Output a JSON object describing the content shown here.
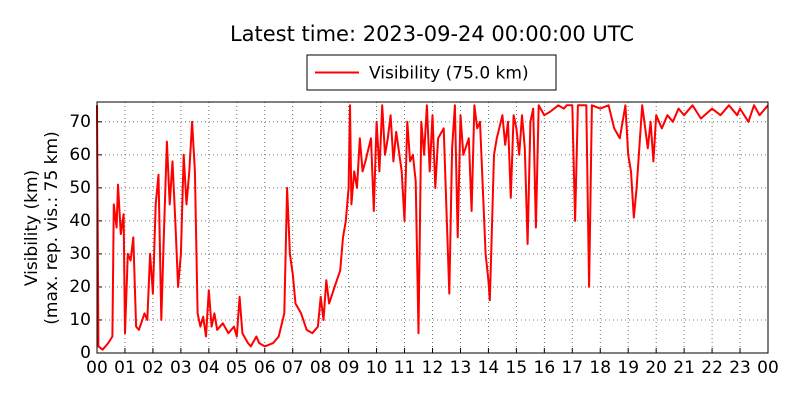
{
  "chart_data": {
    "type": "line",
    "title": "Latest time: 2023-09-24 00:00:00 UTC",
    "ylabel": [
      "Visibility (km)",
      "(max. rep. vis.: 75 km)"
    ],
    "xlim": [
      0,
      24
    ],
    "xticks": [
      {
        "value": 0,
        "label": "00"
      },
      {
        "value": 1,
        "label": "01"
      },
      {
        "value": 2,
        "label": "02"
      },
      {
        "value": 3,
        "label": "03"
      },
      {
        "value": 4,
        "label": "04"
      },
      {
        "value": 5,
        "label": "05"
      },
      {
        "value": 6,
        "label": "06"
      },
      {
        "value": 7,
        "label": "07"
      },
      {
        "value": 8,
        "label": "08"
      },
      {
        "value": 9,
        "label": "09"
      },
      {
        "value": 10,
        "label": "10"
      },
      {
        "value": 11,
        "label": "11"
      },
      {
        "value": 12,
        "label": "12"
      },
      {
        "value": 13,
        "label": "13"
      },
      {
        "value": 14,
        "label": "14"
      },
      {
        "value": 15,
        "label": "15"
      },
      {
        "value": 16,
        "label": "16"
      },
      {
        "value": 17,
        "label": "17"
      },
      {
        "value": 18,
        "label": "18"
      },
      {
        "value": 19,
        "label": "19"
      },
      {
        "value": 20,
        "label": "20"
      },
      {
        "value": 21,
        "label": "21"
      },
      {
        "value": 22,
        "label": "22"
      },
      {
        "value": 23,
        "label": "23"
      },
      {
        "value": 24,
        "label": "00"
      }
    ],
    "ylim": [
      0,
      76
    ],
    "yticks": [
      0,
      10,
      20,
      30,
      40,
      50,
      60,
      70
    ],
    "grid": true,
    "legend": "top",
    "x": [
      0.0,
      0.05,
      0.2,
      0.4,
      0.55,
      0.6,
      0.7,
      0.75,
      0.85,
      0.95,
      1.0,
      1.1,
      1.2,
      1.3,
      1.4,
      1.5,
      1.7,
      1.8,
      1.9,
      2.0,
      2.1,
      2.2,
      2.3,
      2.4,
      2.5,
      2.6,
      2.7,
      2.8,
      2.9,
      3.0,
      3.1,
      3.2,
      3.3,
      3.4,
      3.5,
      3.6,
      3.7,
      3.8,
      3.9,
      4.0,
      4.1,
      4.2,
      4.3,
      4.5,
      4.7,
      4.9,
      5.0,
      5.1,
      5.2,
      5.4,
      5.5,
      5.7,
      5.8,
      6.0,
      6.3,
      6.5,
      6.7,
      6.8,
      6.9,
      7.0,
      7.1,
      7.3,
      7.5,
      7.7,
      7.9,
      8.0,
      8.1,
      8.2,
      8.3,
      8.5,
      8.7,
      8.8,
      8.9,
      9.0,
      9.05,
      9.1,
      9.2,
      9.3,
      9.4,
      9.5,
      9.6,
      9.8,
      9.9,
      10.0,
      10.1,
      10.2,
      10.3,
      10.4,
      10.5,
      10.6,
      10.7,
      10.9,
      11.0,
      11.1,
      11.2,
      11.3,
      11.4,
      11.5,
      11.6,
      11.7,
      11.8,
      11.9,
      12.0,
      12.1,
      12.2,
      12.4,
      12.6,
      12.7,
      12.8,
      12.9,
      13.0,
      13.1,
      13.3,
      13.4,
      13.5,
      13.6,
      13.7,
      13.8,
      13.9,
      14.0,
      14.05,
      14.1,
      14.2,
      14.3,
      14.5,
      14.6,
      14.7,
      14.8,
      14.9,
      15.0,
      15.1,
      15.2,
      15.3,
      15.4,
      15.5,
      15.6,
      15.7,
      15.8,
      16.0,
      16.2,
      16.5,
      16.7,
      16.8,
      17.0,
      17.1,
      17.2,
      17.5,
      17.6,
      17.7,
      18.0,
      18.3,
      18.5,
      18.7,
      18.9,
      19.0,
      19.1,
      19.2,
      19.3,
      19.5,
      19.7,
      19.8,
      19.9,
      20.0,
      20.2,
      20.4,
      20.6,
      20.8,
      21.0,
      21.3,
      21.6,
      22.0,
      22.3,
      22.6,
      22.9,
      23.0,
      23.3,
      23.5,
      23.7,
      24.0
    ],
    "series": [
      {
        "name": "Visibility (75.0 km)",
        "color": "#ff0000",
        "values": [
          75,
          2,
          1,
          3,
          5,
          45,
          38,
          51,
          36,
          42,
          6,
          30,
          28,
          35,
          8,
          7,
          12,
          10,
          30,
          18,
          45,
          54,
          10,
          38,
          64,
          45,
          58,
          40,
          20,
          30,
          60,
          45,
          55,
          70,
          55,
          12,
          8,
          11,
          5,
          19,
          8,
          12,
          7,
          9,
          6,
          8,
          5,
          17,
          6,
          3,
          2,
          5,
          3,
          2,
          3,
          5,
          12,
          50,
          30,
          24,
          15,
          12,
          7,
          6,
          8,
          17,
          10,
          22,
          15,
          20,
          25,
          35,
          40,
          50,
          75,
          45,
          55,
          50,
          65,
          55,
          58,
          65,
          43,
          70,
          55,
          75,
          60,
          65,
          72,
          58,
          67,
          55,
          40,
          70,
          58,
          60,
          52,
          6,
          70,
          60,
          75,
          55,
          72,
          50,
          65,
          68,
          18,
          62,
          75,
          35,
          72,
          60,
          65,
          43,
          75,
          68,
          70,
          50,
          30,
          22,
          16,
          30,
          60,
          65,
          72,
          63,
          70,
          47,
          72,
          68,
          60,
          72,
          62,
          33,
          70,
          74,
          38,
          75,
          72,
          73,
          75,
          74,
          75,
          75,
          40,
          75,
          75,
          20,
          75,
          74,
          75,
          68,
          65,
          75,
          60,
          55,
          41,
          50,
          75,
          62,
          70,
          58,
          72,
          68,
          72,
          70,
          74,
          72,
          75,
          71,
          74,
          72,
          75,
          72,
          74,
          70,
          75,
          72,
          75
        ]
      }
    ]
  }
}
